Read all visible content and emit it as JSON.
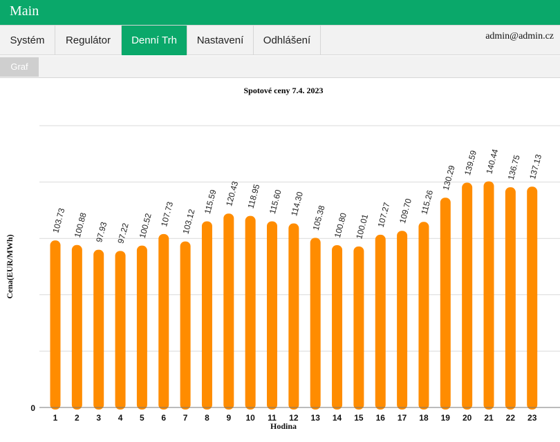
{
  "app": {
    "title": "Main"
  },
  "nav": {
    "items": [
      {
        "label": "Systém"
      },
      {
        "label": "Regulátor"
      },
      {
        "label": "Denní Trh"
      },
      {
        "label": "Nastavení"
      },
      {
        "label": "Odhlášení"
      }
    ],
    "user": "admin@admin.cz"
  },
  "subnav": {
    "tab": "Graf"
  },
  "colors": {
    "accent": "#0aa86a",
    "bar": "#ff8c00",
    "grid": "#d9d9d9"
  },
  "chart_data": {
    "type": "bar",
    "title": "Spotové ceny 7.4. 2023",
    "xlabel": "Hodina",
    "ylabel": "Cena(EUR/MWh)",
    "ylim": [
      0,
      175
    ],
    "y_tick_labels": [
      "0"
    ],
    "grid": true,
    "categories": [
      "1",
      "2",
      "3",
      "4",
      "5",
      "6",
      "7",
      "8",
      "9",
      "10",
      "11",
      "12",
      "13",
      "14",
      "15",
      "16",
      "17",
      "18",
      "19",
      "20",
      "21",
      "22",
      "23"
    ],
    "values": [
      103.73,
      100.88,
      97.93,
      97.22,
      100.52,
      107.73,
      103.12,
      115.59,
      120.43,
      118.95,
      115.6,
      114.3,
      105.38,
      100.8,
      100.01,
      107.27,
      109.7,
      115.26,
      130.29,
      139.59,
      140.44,
      136.75,
      137.13
    ],
    "value_labels": [
      "103.73",
      "100.88",
      "97.93",
      "97.22",
      "100.52",
      "107.73",
      "103.12",
      "115.59",
      "120.43",
      "118.95",
      "115.60",
      "114.30",
      "105.38",
      "100.80",
      "100.01",
      "107.27",
      "109.70",
      "115.26",
      "130.29",
      "139.59",
      "140.44",
      "136.75",
      "137.13"
    ]
  }
}
